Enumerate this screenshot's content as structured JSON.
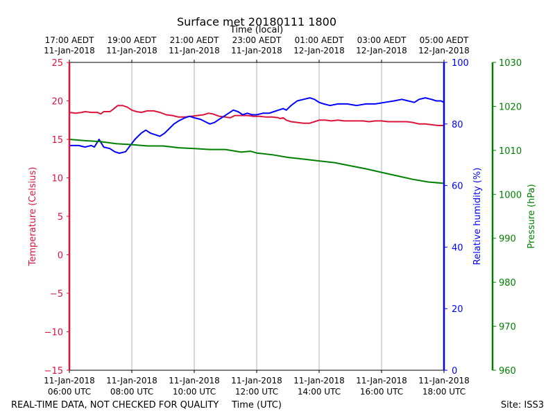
{
  "chart_data": {
    "type": "line",
    "title": "Surface met 20180111 1800",
    "top_axis_label": "Time (local)",
    "xlabel": "Time (UTC)",
    "footer_left": "REAL-TIME DATA, NOT CHECKED FOR QUALITY",
    "footer_right": "Site: ISS3",
    "x_hours_range": [
      6,
      18
    ],
    "x_ticks_utc": [
      {
        "hour": 6,
        "line1": "11-Jan-2018",
        "line2": "06:00 UTC"
      },
      {
        "hour": 8,
        "line1": "11-Jan-2018",
        "line2": "08:00 UTC"
      },
      {
        "hour": 10,
        "line1": "11-Jan-2018",
        "line2": "10:00 UTC"
      },
      {
        "hour": 12,
        "line1": "11-Jan-2018",
        "line2": "12:00 UTC"
      },
      {
        "hour": 14,
        "line1": "11-Jan-2018",
        "line2": "14:00 UTC"
      },
      {
        "hour": 16,
        "line1": "11-Jan-2018",
        "line2": "16:00 UTC"
      },
      {
        "hour": 18,
        "line1": "11-Jan-2018",
        "line2": "18:00 UTC"
      }
    ],
    "x_ticks_local": [
      {
        "hour": 6,
        "line1": "17:00 AEDT",
        "line2": "11-Jan-2018"
      },
      {
        "hour": 8,
        "line1": "19:00 AEDT",
        "line2": "11-Jan-2018"
      },
      {
        "hour": 10,
        "line1": "21:00 AEDT",
        "line2": "11-Jan-2018"
      },
      {
        "hour": 12,
        "line1": "23:00 AEDT",
        "line2": "11-Jan-2018"
      },
      {
        "hour": 14,
        "line1": "01:00 AEDT",
        "line2": "12-Jan-2018"
      },
      {
        "hour": 16,
        "line1": "03:00 AEDT",
        "line2": "12-Jan-2018"
      },
      {
        "hour": 18,
        "line1": "05:00 AEDT",
        "line2": "12-Jan-2018"
      }
    ],
    "axes": {
      "temperature": {
        "label": "Temperature (Celsius)",
        "range": [
          -15,
          25
        ],
        "ticks": [
          25,
          20,
          15,
          10,
          5,
          0,
          -5,
          -10,
          -15
        ],
        "color": "#dc143c"
      },
      "humidity": {
        "label": "Relative humidity (%)",
        "range": [
          0,
          100
        ],
        "ticks": [
          0,
          20,
          40,
          60,
          80,
          100
        ],
        "color": "#0000ff"
      },
      "pressure": {
        "label": "Pressure (hPa)",
        "range": [
          960,
          1030
        ],
        "ticks": [
          960,
          970,
          980,
          990,
          1000,
          1010,
          1020,
          1030
        ],
        "color": "#008000"
      }
    },
    "series": [
      {
        "name": "Temperature",
        "axis": "temperature",
        "color": "#dc143c",
        "points": [
          [
            6.0,
            18.5
          ],
          [
            6.2,
            18.4
          ],
          [
            6.4,
            18.5
          ],
          [
            6.5,
            18.6
          ],
          [
            6.7,
            18.5
          ],
          [
            6.9,
            18.5
          ],
          [
            7.0,
            18.3
          ],
          [
            7.1,
            18.6
          ],
          [
            7.3,
            18.6
          ],
          [
            7.4,
            18.9
          ],
          [
            7.55,
            19.4
          ],
          [
            7.7,
            19.4
          ],
          [
            7.85,
            19.2
          ],
          [
            8.0,
            18.8
          ],
          [
            8.15,
            18.6
          ],
          [
            8.3,
            18.5
          ],
          [
            8.5,
            18.7
          ],
          [
            8.7,
            18.7
          ],
          [
            8.9,
            18.5
          ],
          [
            9.1,
            18.2
          ],
          [
            9.3,
            18.1
          ],
          [
            9.5,
            17.9
          ],
          [
            9.7,
            17.9
          ],
          [
            9.9,
            18.0
          ],
          [
            10.1,
            18.1
          ],
          [
            10.3,
            18.2
          ],
          [
            10.45,
            18.4
          ],
          [
            10.6,
            18.3
          ],
          [
            10.8,
            18.0
          ],
          [
            11.0,
            17.9
          ],
          [
            11.15,
            17.8
          ],
          [
            11.3,
            18.1
          ],
          [
            11.5,
            18.1
          ],
          [
            11.7,
            18.1
          ],
          [
            11.9,
            18.0
          ],
          [
            12.1,
            18.0
          ],
          [
            12.3,
            17.9
          ],
          [
            12.5,
            17.9
          ],
          [
            12.7,
            17.8
          ],
          [
            12.75,
            17.7
          ],
          [
            12.85,
            17.8
          ],
          [
            12.95,
            17.5
          ],
          [
            13.1,
            17.3
          ],
          [
            13.3,
            17.2
          ],
          [
            13.5,
            17.1
          ],
          [
            13.7,
            17.1
          ],
          [
            13.85,
            17.3
          ],
          [
            14.0,
            17.5
          ],
          [
            14.2,
            17.5
          ],
          [
            14.4,
            17.4
          ],
          [
            14.6,
            17.5
          ],
          [
            14.8,
            17.4
          ],
          [
            15.0,
            17.4
          ],
          [
            15.2,
            17.4
          ],
          [
            15.4,
            17.4
          ],
          [
            15.6,
            17.3
          ],
          [
            15.8,
            17.4
          ],
          [
            16.0,
            17.4
          ],
          [
            16.2,
            17.3
          ],
          [
            16.4,
            17.3
          ],
          [
            16.6,
            17.3
          ],
          [
            16.8,
            17.3
          ],
          [
            17.0,
            17.2
          ],
          [
            17.2,
            17.0
          ],
          [
            17.4,
            17.0
          ],
          [
            17.6,
            16.9
          ],
          [
            17.8,
            16.8
          ],
          [
            17.9,
            16.8
          ],
          [
            18.0,
            16.8
          ]
        ]
      },
      {
        "name": "Relative humidity",
        "axis": "humidity",
        "color": "#0000ff",
        "points": [
          [
            6.0,
            73.0
          ],
          [
            6.3,
            73.0
          ],
          [
            6.5,
            72.5
          ],
          [
            6.7,
            73.0
          ],
          [
            6.8,
            72.5
          ],
          [
            6.95,
            75.0
          ],
          [
            7.1,
            72.5
          ],
          [
            7.3,
            72.0
          ],
          [
            7.45,
            71.0
          ],
          [
            7.6,
            70.5
          ],
          [
            7.8,
            71.0
          ],
          [
            7.95,
            73.0
          ],
          [
            8.1,
            75.0
          ],
          [
            8.3,
            77.0
          ],
          [
            8.45,
            78.0
          ],
          [
            8.6,
            77.0
          ],
          [
            8.75,
            76.5
          ],
          [
            8.9,
            76.0
          ],
          [
            9.05,
            77.0
          ],
          [
            9.2,
            78.5
          ],
          [
            9.35,
            80.0
          ],
          [
            9.5,
            81.0
          ],
          [
            9.7,
            82.0
          ],
          [
            9.85,
            82.5
          ],
          [
            10.0,
            82.0
          ],
          [
            10.2,
            81.5
          ],
          [
            10.4,
            80.5
          ],
          [
            10.5,
            80.0
          ],
          [
            10.65,
            80.5
          ],
          [
            10.8,
            81.5
          ],
          [
            10.95,
            82.5
          ],
          [
            11.1,
            83.5
          ],
          [
            11.25,
            84.5
          ],
          [
            11.4,
            84.0
          ],
          [
            11.55,
            83.0
          ],
          [
            11.7,
            83.5
          ],
          [
            11.85,
            83.0
          ],
          [
            12.0,
            83.0
          ],
          [
            12.2,
            83.5
          ],
          [
            12.4,
            83.5
          ],
          [
            12.55,
            84.0
          ],
          [
            12.7,
            84.5
          ],
          [
            12.85,
            85.0
          ],
          [
            12.95,
            84.5
          ],
          [
            13.1,
            86.0
          ],
          [
            13.3,
            87.5
          ],
          [
            13.5,
            88.0
          ],
          [
            13.7,
            88.5
          ],
          [
            13.85,
            88.0
          ],
          [
            14.0,
            87.0
          ],
          [
            14.15,
            86.5
          ],
          [
            14.35,
            86.0
          ],
          [
            14.6,
            86.5
          ],
          [
            14.9,
            86.5
          ],
          [
            15.2,
            86.0
          ],
          [
            15.5,
            86.5
          ],
          [
            15.8,
            86.5
          ],
          [
            16.1,
            87.0
          ],
          [
            16.4,
            87.5
          ],
          [
            16.65,
            88.0
          ],
          [
            16.85,
            87.5
          ],
          [
            17.05,
            87.0
          ],
          [
            17.2,
            88.0
          ],
          [
            17.4,
            88.5
          ],
          [
            17.6,
            88.0
          ],
          [
            17.75,
            87.5
          ],
          [
            17.9,
            87.5
          ],
          [
            18.0,
            87.0
          ]
        ]
      },
      {
        "name": "Pressure",
        "axis": "pressure",
        "color": "#008000",
        "points": [
          [
            6.0,
            1012.5
          ],
          [
            6.5,
            1012.2
          ],
          [
            7.0,
            1012.0
          ],
          [
            7.5,
            1011.5
          ],
          [
            8.0,
            1011.3
          ],
          [
            8.5,
            1011.0
          ],
          [
            9.0,
            1011.0
          ],
          [
            9.5,
            1010.6
          ],
          [
            10.0,
            1010.4
          ],
          [
            10.5,
            1010.2
          ],
          [
            11.0,
            1010.2
          ],
          [
            11.5,
            1009.6
          ],
          [
            11.8,
            1009.8
          ],
          [
            12.0,
            1009.4
          ],
          [
            12.5,
            1009.0
          ],
          [
            13.0,
            1008.4
          ],
          [
            13.5,
            1008.0
          ],
          [
            14.0,
            1007.6
          ],
          [
            14.5,
            1007.2
          ],
          [
            15.0,
            1006.5
          ],
          [
            15.5,
            1005.8
          ],
          [
            16.0,
            1005.0
          ],
          [
            16.5,
            1004.2
          ],
          [
            17.0,
            1003.4
          ],
          [
            17.5,
            1002.8
          ],
          [
            18.0,
            1002.5
          ]
        ]
      }
    ]
  }
}
